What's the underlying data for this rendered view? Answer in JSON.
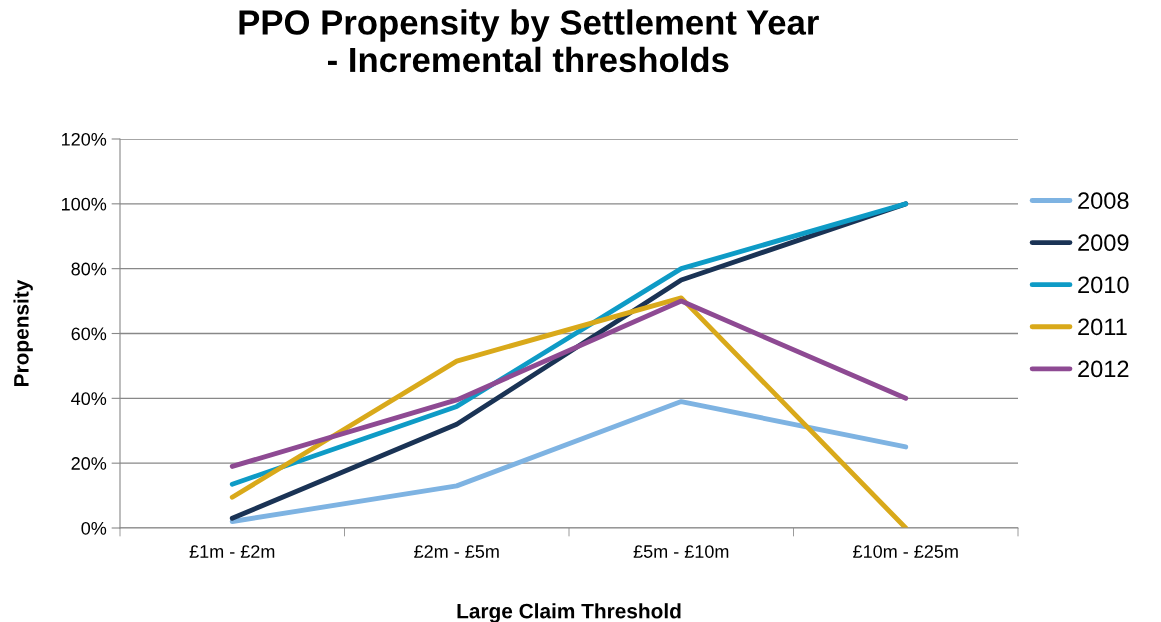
{
  "chart_data": {
    "type": "line",
    "title": "PPO Propensity by Settlement Year\n- Incremental thresholds",
    "xlabel": "Large Claim Threshold",
    "ylabel": "Propensity",
    "categories": [
      "£1m - £2m",
      "£2m - £5m",
      "£5m - £10m",
      "£10m - £25m"
    ],
    "series": [
      {
        "name": "2008",
        "color": "#7eb3e2",
        "values": [
          2,
          13,
          39,
          25
        ]
      },
      {
        "name": "2009",
        "color": "#1a3355",
        "values": [
          3,
          32,
          76.5,
          100
        ]
      },
      {
        "name": "2010",
        "color": "#0e9bc6",
        "values": [
          13.5,
          37.5,
          80,
          100
        ]
      },
      {
        "name": "2011",
        "color": "#d9a91a",
        "values": [
          9.5,
          51.5,
          71,
          0
        ]
      },
      {
        "name": "2012",
        "color": "#8e4a93",
        "values": [
          19,
          39.5,
          70,
          40
        ]
      }
    ],
    "ylim": [
      0,
      120
    ],
    "yticks": [
      {
        "value": 0,
        "label": "0%"
      },
      {
        "value": 20,
        "label": "20%"
      },
      {
        "value": 40,
        "label": "40%"
      },
      {
        "value": 60,
        "label": "60%"
      },
      {
        "value": 80,
        "label": "80%"
      },
      {
        "value": 100,
        "label": "100%"
      },
      {
        "value": 120,
        "label": "120%"
      }
    ],
    "grid": "y",
    "legend": "right",
    "marker": "none",
    "line_style": "solid"
  }
}
